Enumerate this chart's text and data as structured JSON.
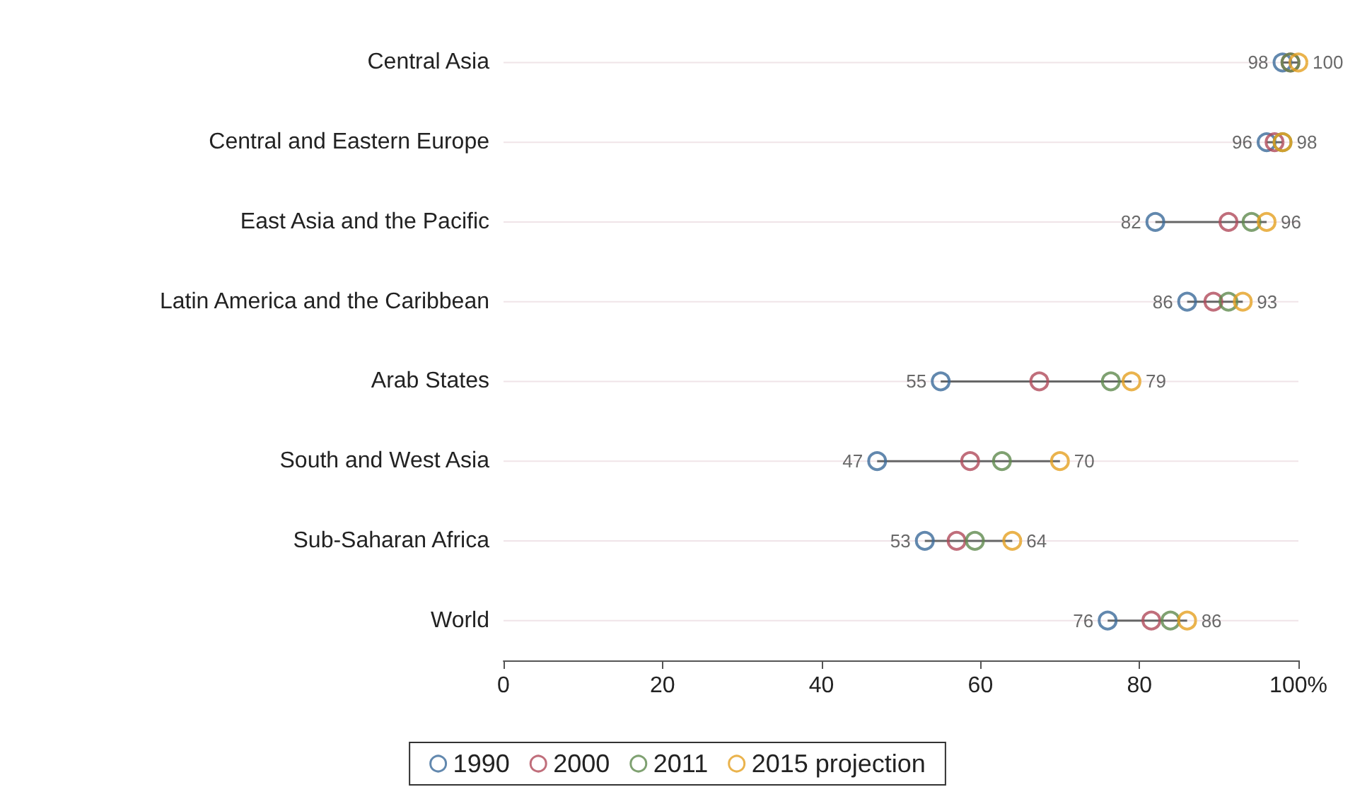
{
  "chart_data": {
    "type": "scatter",
    "orientation": "horizontal",
    "categories": [
      "Central Asia",
      "Central and Eastern Europe",
      "East Asia and the Pacific",
      "Latin America and the Caribbean",
      "Arab States",
      "South and West Asia",
      "Sub-Saharan Africa",
      "World"
    ],
    "series": [
      {
        "name": "1990",
        "color": "#3b6a9a",
        "values": [
          98,
          96,
          82,
          86,
          55,
          47,
          53,
          76
        ],
        "value_labels": [
          "98",
          "96",
          "82",
          "86",
          "55",
          "47",
          "53",
          "76"
        ]
      },
      {
        "name": "2000",
        "color": "#b04a5a",
        "values": [
          99,
          97,
          91.2,
          89.3,
          67.4,
          58.7,
          57,
          81.5
        ]
      },
      {
        "name": "2011",
        "color": "#5f8a4e",
        "values": [
          99,
          98,
          94.1,
          91.2,
          76.4,
          62.7,
          59.3,
          83.9
        ]
      },
      {
        "name": "2015 projection",
        "color": "#e5a020",
        "values": [
          100,
          98,
          96,
          93,
          79,
          70,
          64,
          86
        ],
        "value_labels": [
          "100",
          "98",
          "96",
          "93",
          "79",
          "70",
          "64",
          "86"
        ]
      }
    ],
    "xlim": [
      0,
      100
    ],
    "xticks": [
      0,
      20,
      40,
      60,
      80,
      {
        "value": 100,
        "label": "100%"
      }
    ],
    "grid": "y",
    "legend": "bottom",
    "marker": "circle"
  }
}
